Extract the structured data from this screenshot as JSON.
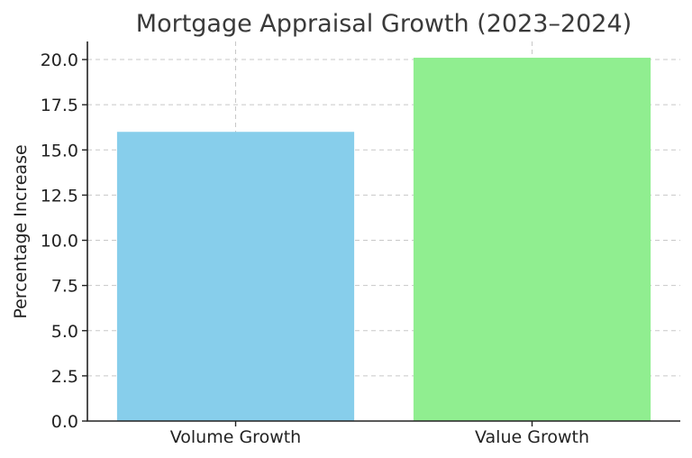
{
  "chart_data": {
    "type": "bar",
    "title": "Mortgage Appraisal Growth (2023–2024)",
    "xlabel": "",
    "ylabel": "Percentage Increase",
    "categories": [
      "Volume Growth",
      "Value Growth"
    ],
    "values": [
      16.0,
      20.1
    ],
    "colors": [
      "#87ceeb",
      "#90ee90"
    ],
    "ylim": [
      0,
      21
    ],
    "yticks": [
      0.0,
      2.5,
      5.0,
      7.5,
      10.0,
      12.5,
      15.0,
      17.5,
      20.0
    ],
    "ytick_labels": [
      "0.0",
      "2.5",
      "5.0",
      "7.5",
      "10.0",
      "12.5",
      "15.0",
      "17.5",
      "20.0"
    ],
    "grid": true,
    "spines": [
      "left",
      "bottom"
    ]
  }
}
